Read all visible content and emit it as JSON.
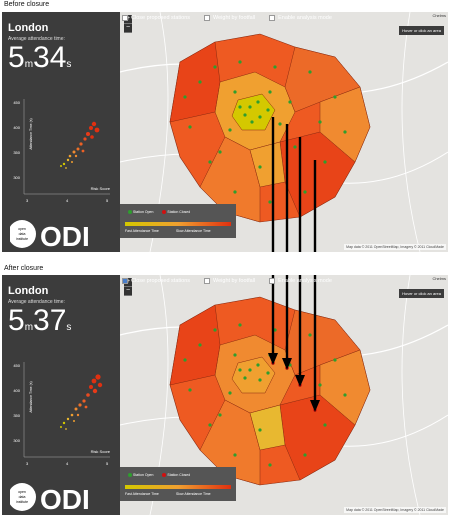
{
  "before": {
    "section_label": "Before closure",
    "city": "London",
    "avg_label": "Average attendance time:",
    "minutes": "5",
    "minutes_unit": "m",
    "seconds": "34",
    "seconds_unit": "s",
    "controls": [
      {
        "label": "Close proposed stations",
        "checked": false
      },
      {
        "label": "Weight by footfall",
        "checked": false
      },
      {
        "label": "Enable analysis mode",
        "checked": false
      }
    ]
  },
  "after": {
    "section_label": "After closure",
    "city": "London",
    "avg_label": "Average attendance time:",
    "minutes": "5",
    "minutes_unit": "m",
    "seconds": "37",
    "seconds_unit": "s",
    "controls": [
      {
        "label": "Close proposed stations",
        "checked": true
      },
      {
        "label": "Weight by footfall",
        "checked": false
      },
      {
        "label": "Enable analysis mode",
        "checked": false
      }
    ]
  },
  "scatter": {
    "ylabel": "Attendance Time (s)",
    "xlabel": "Risk Score",
    "y_ticks": [
      "450",
      "400",
      "350",
      "300"
    ],
    "x_ticks": [
      "3",
      "4",
      "5"
    ]
  },
  "map": {
    "zoom_in": "+",
    "zoom_out": "−",
    "hover_hint": "Hover or click an area",
    "corner_place": "Chelms",
    "attribution": "Map data © 2011 OpenStreetMap, Imagery © 2011 CloudMade",
    "legend_open": "Station Open",
    "legend_closed": "Station Closed",
    "legend_fast": "Fast Attendance Time",
    "legend_slow": "Slow Attendance Time"
  },
  "logo": {
    "line1": "open",
    "line2": "data",
    "line3": "institute",
    "mark": "ODI"
  },
  "colors": {
    "fast": "#d4c800",
    "mid": "#f0a030",
    "slow": "#e03010",
    "station_open": "#2e9e2e",
    "station_closed": "#d01010"
  }
}
